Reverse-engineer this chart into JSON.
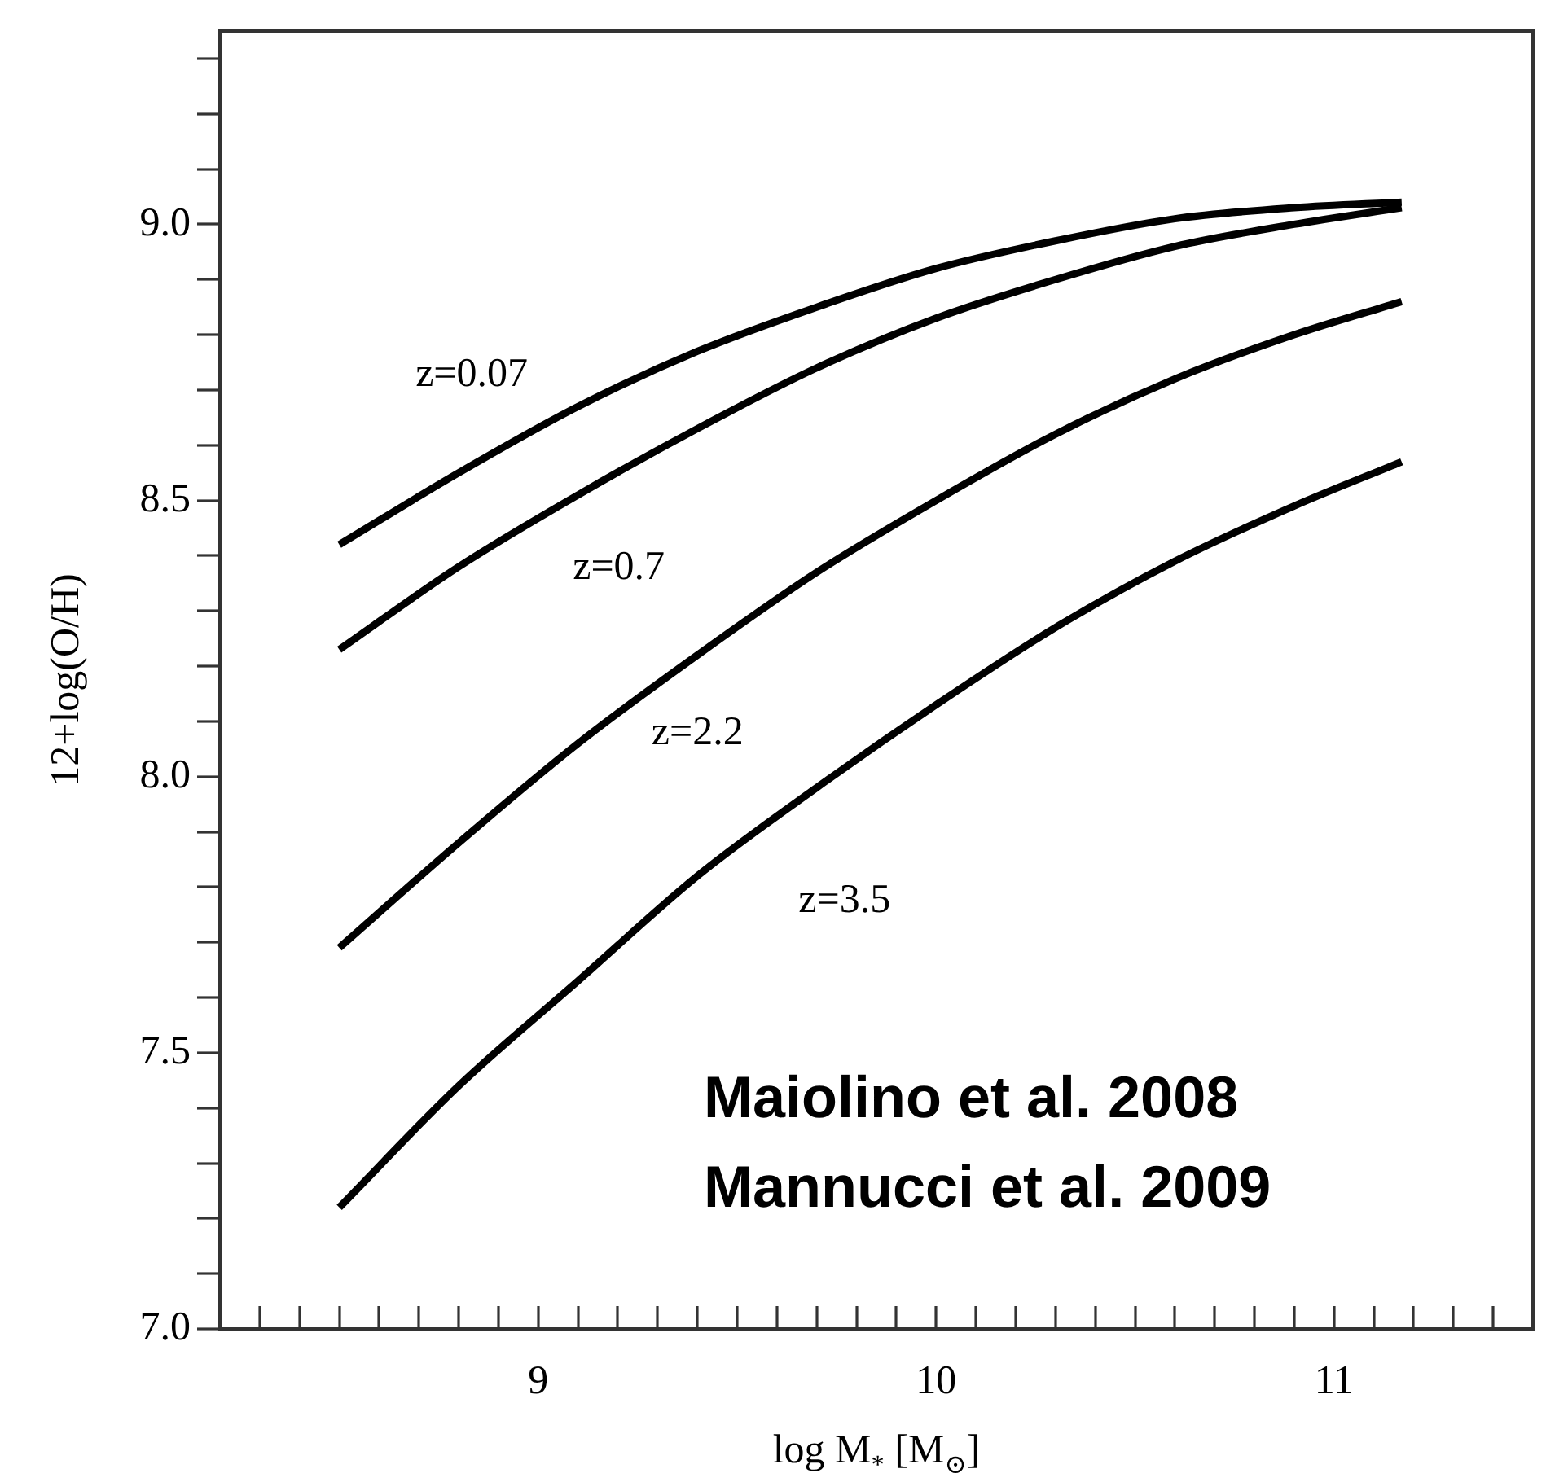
{
  "chart_data": {
    "type": "line",
    "xlabel": "log M$_{*}$ [M$_{⊙}$]",
    "ylabel": "12+log(O/H)",
    "x": [
      8.5,
      8.8,
      9.1,
      9.4,
      9.7,
      10.0,
      10.3,
      10.6,
      10.9,
      11.17
    ],
    "series": [
      {
        "name": "z=0.07",
        "color": "#000000",
        "values": [
          8.42,
          8.55,
          8.67,
          8.77,
          8.85,
          8.92,
          8.97,
          9.01,
          9.03,
          9.04
        ]
      },
      {
        "name": "z=0.7",
        "color": "#000000",
        "values": [
          8.23,
          8.38,
          8.51,
          8.63,
          8.74,
          8.83,
          8.9,
          8.96,
          9.0,
          9.03
        ]
      },
      {
        "name": "z=2.2",
        "color": "#000000",
        "values": [
          7.69,
          7.88,
          8.06,
          8.22,
          8.37,
          8.5,
          8.62,
          8.72,
          8.8,
          8.86
        ]
      },
      {
        "name": "z=3.5",
        "color": "#000000",
        "values": [
          7.22,
          7.44,
          7.63,
          7.82,
          7.98,
          8.13,
          8.27,
          8.39,
          8.49,
          8.57
        ]
      }
    ],
    "xlim": [
      8.2,
      11.5
    ],
    "ylim": [
      7.0,
      9.35
    ],
    "xticks": [
      {
        "value": 8.3,
        "label": null
      },
      {
        "value": 8.4,
        "label": null
      },
      {
        "value": 8.5,
        "label": null
      },
      {
        "value": 8.6,
        "label": null
      },
      {
        "value": 8.7,
        "label": null
      },
      {
        "value": 8.8,
        "label": null
      },
      {
        "value": 8.9,
        "label": null
      },
      9,
      {
        "value": 9.1,
        "label": null
      },
      {
        "value": 9.2,
        "label": null
      },
      {
        "value": 9.3,
        "label": null
      },
      {
        "value": 9.4,
        "label": null
      },
      {
        "value": 9.5,
        "label": null
      },
      {
        "value": 9.6,
        "label": null
      },
      {
        "value": 9.7,
        "label": null
      },
      {
        "value": 9.8,
        "label": null
      },
      {
        "value": 9.9,
        "label": null
      },
      10,
      {
        "value": 10.1,
        "label": null
      },
      {
        "value": 10.2,
        "label": null
      },
      {
        "value": 10.3,
        "label": null
      },
      {
        "value": 10.4,
        "label": null
      },
      {
        "value": 10.5,
        "label": null
      },
      {
        "value": 10.6,
        "label": null
      },
      {
        "value": 10.7,
        "label": null
      },
      {
        "value": 10.8,
        "label": null
      },
      {
        "value": 10.9,
        "label": null
      },
      11,
      {
        "value": 11.1,
        "label": null
      },
      {
        "value": 11.2,
        "label": null
      },
      {
        "value": 11.3,
        "label": null
      },
      {
        "value": 11.4,
        "label": null
      }
    ],
    "yticks": [
      {
        "value": 7.0,
        "label": "7.0"
      },
      {
        "value": 7.1,
        "label": null
      },
      {
        "value": 7.2,
        "label": null
      },
      {
        "value": 7.3,
        "label": null
      },
      {
        "value": 7.4,
        "label": null
      },
      7.5,
      {
        "value": 7.6,
        "label": null
      },
      {
        "value": 7.7,
        "label": null
      },
      {
        "value": 7.8,
        "label": null
      },
      {
        "value": 7.9,
        "label": null
      },
      {
        "value": 8.0,
        "label": "8.0"
      },
      {
        "value": 8.1,
        "label": null
      },
      {
        "value": 8.2,
        "label": null
      },
      {
        "value": 8.3,
        "label": null
      },
      {
        "value": 8.4,
        "label": null
      },
      8.5,
      {
        "value": 8.6,
        "label": null
      },
      {
        "value": 8.7,
        "label": null
      },
      {
        "value": 8.8,
        "label": null
      },
      {
        "value": 8.9,
        "label": null
      },
      {
        "value": 9.0,
        "label": "9.0"
      },
      {
        "value": 9.1,
        "label": null
      },
      {
        "value": 9.2,
        "label": null
      },
      {
        "value": 9.3,
        "label": null
      }
    ],
    "annotations": [
      "Maiolino et al. 2008",
      "Mannucci et al. 2009"
    ],
    "grid": false,
    "legend": false,
    "marker": "none",
    "line_style": "solid"
  }
}
